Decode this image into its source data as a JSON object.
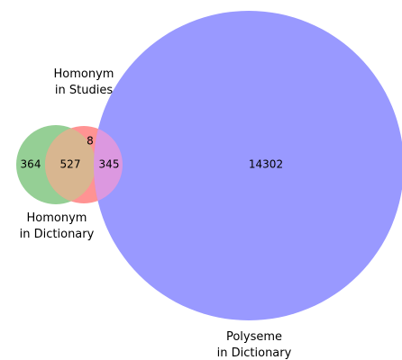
{
  "chart_data": {
    "type": "venn",
    "sets": [
      {
        "label": [
          "Homonym",
          "in Dictionary"
        ],
        "color": "#95cf95"
      },
      {
        "label": [
          "Homonym",
          "in Studies"
        ],
        "color": "#ff9393"
      },
      {
        "label": [
          "Polyseme",
          "in Dictionary"
        ],
        "color": "#9999ff"
      }
    ],
    "values": [
      364,
      527,
      8,
      345,
      14302
    ]
  }
}
